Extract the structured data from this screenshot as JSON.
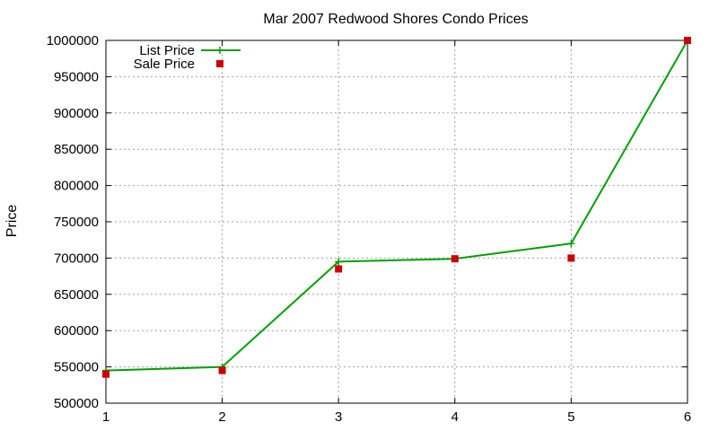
{
  "chart_data": {
    "type": "line",
    "title": "Mar 2007 Redwood Shores Condo Prices",
    "xlabel": "",
    "ylabel": "Price",
    "x": [
      1,
      2,
      3,
      4,
      5,
      6
    ],
    "xlim": [
      1,
      6
    ],
    "ylim": [
      500000,
      1000000
    ],
    "x_ticks": [
      "1",
      "2",
      "3",
      "4",
      "5",
      "6"
    ],
    "y_ticks": [
      "500000",
      "550000",
      "600000",
      "650000",
      "700000",
      "750000",
      "800000",
      "850000",
      "900000",
      "950000",
      "1000000"
    ],
    "grid": true,
    "legend_position": "top-left",
    "series": [
      {
        "name": "List Price",
        "style": "line-with-plus-markers",
        "color": "#00a000",
        "values": [
          545000,
          550000,
          695000,
          699000,
          720000,
          1000000
        ]
      },
      {
        "name": "Sale Price",
        "style": "square-markers",
        "color": "#cc0000",
        "values": [
          540000,
          545000,
          685000,
          699000,
          700000,
          1000000
        ]
      }
    ]
  }
}
